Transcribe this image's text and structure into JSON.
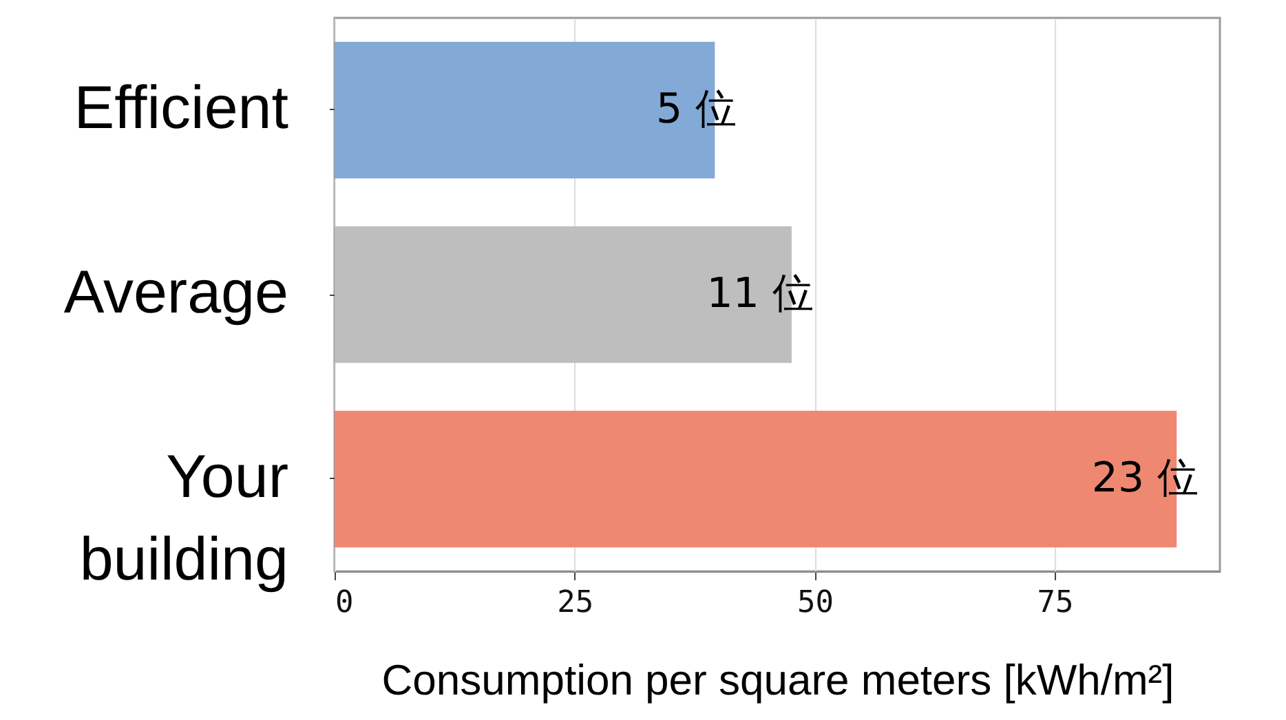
{
  "chart_data": {
    "type": "bar",
    "orientation": "horizontal",
    "xlabel": "Consumption per square meters [kWh/m²]",
    "categories": [
      "Efficient",
      "Average",
      "Your building"
    ],
    "values": [
      39.6,
      47.6,
      87.7
    ],
    "colors": [
      "#83a9d6",
      "#bebebe",
      "#ef8870"
    ],
    "annotations": [
      {
        "text": "5 位",
        "x": 39.6,
        "y": "Efficient"
      },
      {
        "text": "11 位",
        "x": 47.6,
        "y": "Average"
      },
      {
        "text": "23 位",
        "x": 87.7,
        "y": "Your building"
      }
    ],
    "xlim": [
      0,
      92.2
    ],
    "xticks": [
      0,
      25,
      50,
      75
    ],
    "grid": "x"
  }
}
